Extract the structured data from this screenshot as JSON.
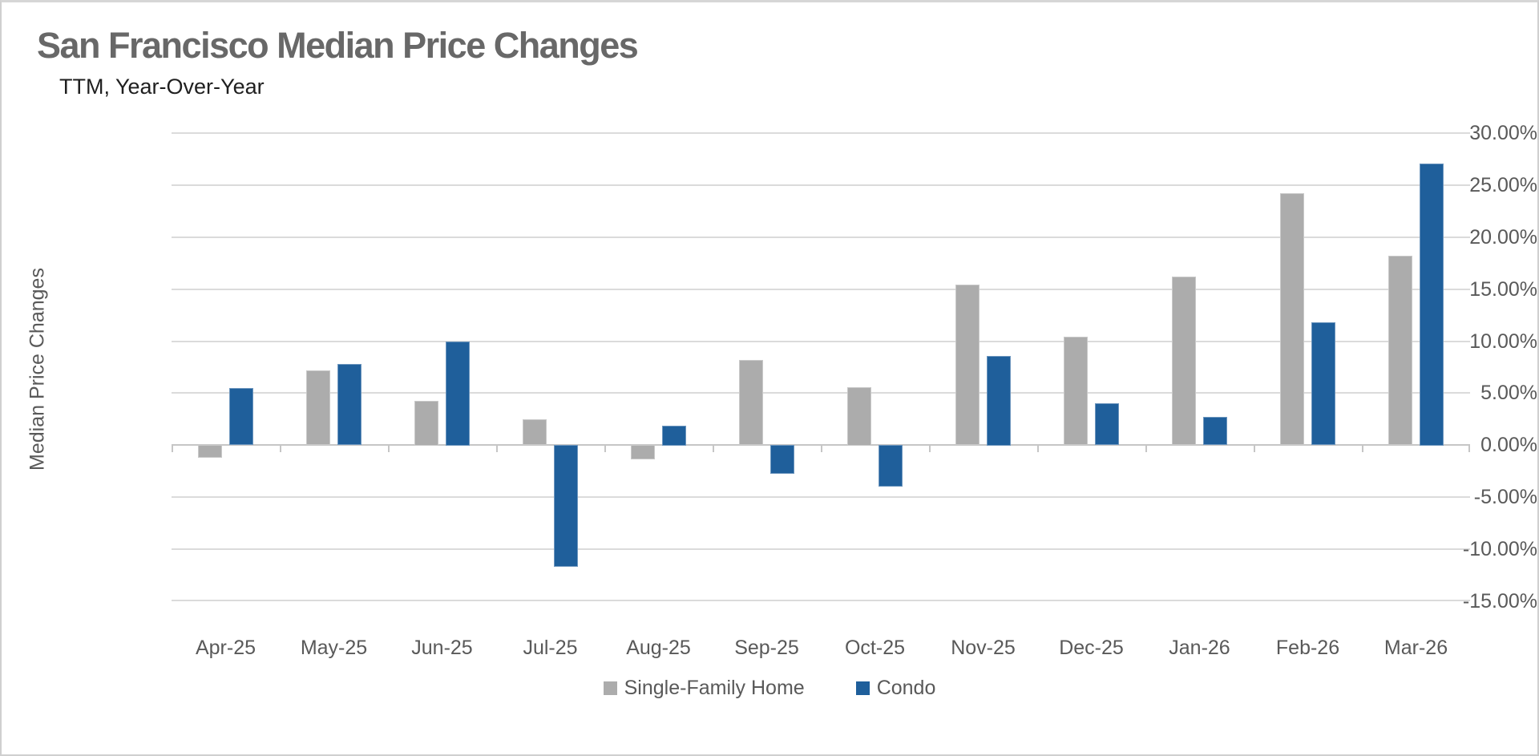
{
  "chart_data": {
    "type": "bar",
    "title": "San Francisco Median Price Changes",
    "subtitle": "TTM, Year-Over-Year",
    "ylabel": "Median Price Changes",
    "xlabel": "",
    "categories": [
      "Apr-25",
      "May-25",
      "Jun-25",
      "Jul-25",
      "Aug-25",
      "Sep-25",
      "Oct-25",
      "Nov-25",
      "Dec-25",
      "Jan-26",
      "Feb-26",
      "Mar-26"
    ],
    "series": [
      {
        "name": "Single-Family Home",
        "color": "#acacac",
        "values": [
          -1.2,
          7.2,
          4.3,
          2.5,
          -1.4,
          8.2,
          5.6,
          15.4,
          10.4,
          16.2,
          24.2,
          18.2
        ]
      },
      {
        "name": "Condo",
        "color": "#1f5f9b",
        "values": [
          5.5,
          7.8,
          10.0,
          -11.7,
          1.9,
          -2.8,
          -4.0,
          8.6,
          4.0,
          2.7,
          11.8,
          27.1
        ]
      }
    ],
    "ylim": [
      -15,
      30
    ],
    "ytick_step": 5,
    "ytick_labels": [
      "30.00%",
      "25.00%",
      "20.00%",
      "15.00%",
      "10.00%",
      "5.00%",
      "0.00%",
      "-5.00%",
      "-10.00%",
      "-15.00%"
    ],
    "grid": true,
    "legend_position": "bottom",
    "colors": {
      "gridline": "#dbdbdb",
      "zero_axis": "#c6c6c6",
      "axis_text": "#595959",
      "title_text": "#686868",
      "subtitle_text": "#1f1f1f",
      "background": "#ffffff"
    }
  }
}
